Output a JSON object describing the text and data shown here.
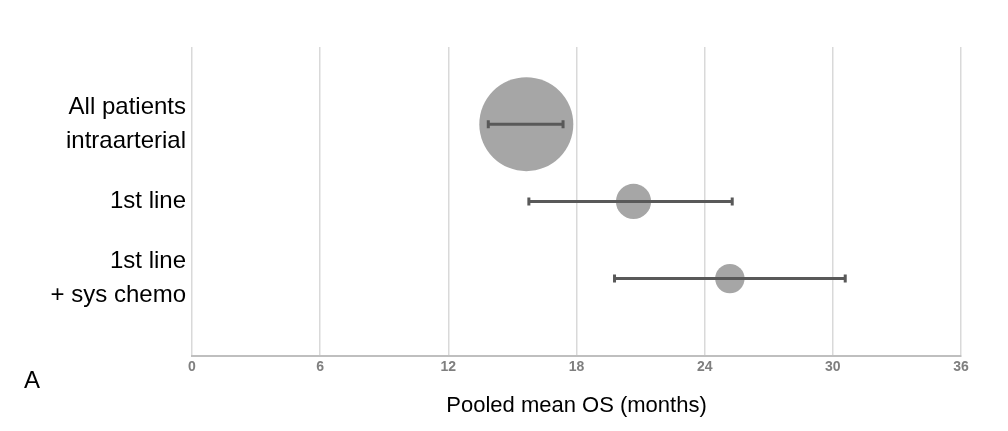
{
  "chart_data": {
    "type": "bubble",
    "orientation": "horizontal",
    "xlabel": "Pooled mean OS (months)",
    "categories": [
      "All patients\nintraarterial",
      "1st line",
      "1st line\n+ sys chemo"
    ],
    "values": [
      15.65,
      20.67,
      25.18
    ],
    "errors": [
      [
        13.87,
        17.37
      ],
      [
        15.77,
        25.29
      ],
      [
        19.78,
        30.58
      ]
    ],
    "sizes": [
      1,
      0.14,
      0.098
    ],
    "color": "#a6a6a6",
    "xlim": [
      0,
      36
    ],
    "xticks": [
      0,
      6,
      12,
      18,
      24,
      30,
      36
    ],
    "grid": "x",
    "legend": false,
    "annotations": [
      "A"
    ]
  }
}
